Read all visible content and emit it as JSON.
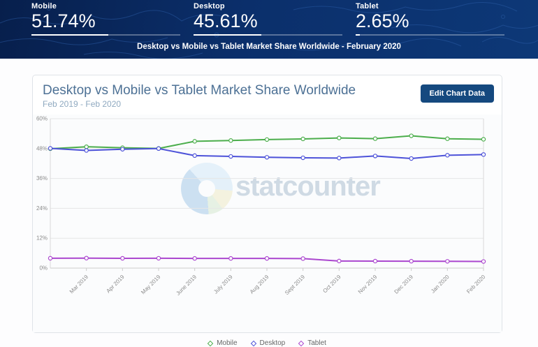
{
  "header": {
    "stats": [
      {
        "label": "Mobile",
        "value": "51.74%",
        "percent": 51.74
      },
      {
        "label": "Desktop",
        "value": "45.61%",
        "percent": 45.61
      },
      {
        "label": "Tablet",
        "value": "2.65%",
        "percent": 2.65
      }
    ],
    "subtitle": "Desktop vs Mobile vs Tablet Market Share Worldwide - February 2020",
    "background_color": "#0b2f6b"
  },
  "card": {
    "title": "Desktop vs Mobile vs Tablet Market Share Worldwide",
    "date_range": "Feb 2019 - Feb 2020",
    "edit_button_label": "Edit Chart Data",
    "edit_button_color": "#15497f",
    "watermark_text": "statcounter"
  },
  "chart_data": {
    "type": "line",
    "title": "Desktop vs Mobile vs Tablet Market Share Worldwide",
    "xlabel": "",
    "ylabel": "",
    "ylim": [
      0,
      60
    ],
    "y_ticks": [
      0,
      12,
      24,
      36,
      48,
      60
    ],
    "y_tick_suffix": "%",
    "grid": true,
    "legend_position": "bottom",
    "x_label_start_index": 1,
    "categories": [
      "Feb 2019",
      "Mar 2019",
      "Apr 2019",
      "May 2019",
      "June 2019",
      "July 2019",
      "Aug 2019",
      "Sept 2019",
      "Oct 2019",
      "Nov 2019",
      "Dec 2019",
      "Jan 2020",
      "Feb 2020"
    ],
    "series": [
      {
        "name": "Mobile",
        "color": "#4cae4c",
        "values": [
          47.95,
          48.73,
          48.33,
          48.05,
          50.92,
          51.25,
          51.61,
          51.88,
          52.27,
          51.98,
          53.12,
          51.95,
          51.74
        ]
      },
      {
        "name": "Desktop",
        "color": "#4d52d9",
        "values": [
          48.09,
          47.26,
          47.73,
          48.0,
          45.18,
          44.85,
          44.5,
          44.29,
          44.2,
          45.02,
          44.01,
          45.32,
          45.61
        ]
      },
      {
        "name": "Tablet",
        "color": "#ab47cf",
        "values": [
          3.96,
          4.01,
          3.94,
          3.95,
          3.9,
          3.9,
          3.89,
          3.83,
          2.85,
          2.81,
          2.78,
          2.73,
          2.65
        ]
      }
    ]
  }
}
